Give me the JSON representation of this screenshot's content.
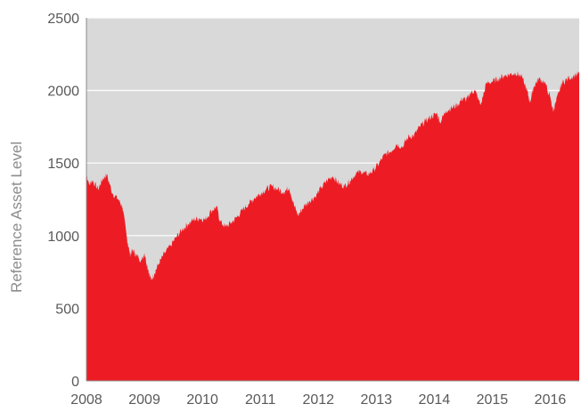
{
  "chart_data": {
    "type": "area",
    "title": "",
    "xlabel": "",
    "ylabel": "Reference Asset Level",
    "ylim": [
      0,
      2500
    ],
    "xlim": [
      2008.0,
      2016.5
    ],
    "grid": true,
    "yticks": [
      "0",
      "500",
      "1000",
      "1500",
      "2000",
      "2500"
    ],
    "xticks": [
      "2008",
      "2009",
      "2010",
      "2011",
      "2012",
      "2013",
      "2014",
      "2015",
      "2016"
    ],
    "colors": {
      "fill": "#ed1c24",
      "background": "#d9d9d9",
      "grid": "#ffffff"
    },
    "series": [
      {
        "x": [
          2008.0,
          2008.05,
          2008.1,
          2008.2,
          2008.28,
          2008.35,
          2008.45,
          2008.55,
          2008.62,
          2008.7,
          2008.75,
          2008.8,
          2008.87,
          2008.95,
          2009.0,
          2009.07,
          2009.12,
          2009.17,
          2009.25,
          2009.35,
          2009.45,
          2009.55,
          2009.65,
          2009.75,
          2009.85,
          2009.95,
          2010.05,
          2010.15,
          2010.25,
          2010.3,
          2010.4,
          2010.5,
          2010.6,
          2010.7,
          2010.8,
          2010.9,
          2011.0,
          2011.1,
          2011.2,
          2011.3,
          2011.4,
          2011.5,
          2011.58,
          2011.65,
          2011.75,
          2011.85,
          2011.95,
          2012.05,
          2012.15,
          2012.25,
          2012.35,
          2012.45,
          2012.55,
          2012.65,
          2012.75,
          2012.85,
          2012.95,
          2013.05,
          2013.15,
          2013.25,
          2013.35,
          2013.45,
          2013.55,
          2013.65,
          2013.75,
          2013.85,
          2013.95,
          2014.05,
          2014.1,
          2014.2,
          2014.3,
          2014.4,
          2014.5,
          2014.55,
          2014.62,
          2014.7,
          2014.8,
          2014.9,
          2015.0,
          2015.1,
          2015.2,
          2015.3,
          2015.4,
          2015.5,
          2015.6,
          2015.65,
          2015.72,
          2015.8,
          2015.9,
          2016.0,
          2016.05,
          2016.1,
          2016.2,
          2016.3,
          2016.4,
          2016.5
        ],
        "y": [
          1420,
          1350,
          1380,
          1320,
          1390,
          1420,
          1290,
          1250,
          1200,
          980,
          870,
          900,
          860,
          830,
          880,
          760,
          690,
          740,
          810,
          880,
          930,
          990,
          1040,
          1080,
          1110,
          1120,
          1110,
          1170,
          1200,
          1100,
          1060,
          1090,
          1130,
          1180,
          1220,
          1260,
          1290,
          1320,
          1340,
          1320,
          1300,
          1330,
          1210,
          1140,
          1200,
          1240,
          1270,
          1330,
          1380,
          1410,
          1360,
          1340,
          1380,
          1430,
          1440,
          1420,
          1450,
          1500,
          1560,
          1580,
          1630,
          1610,
          1680,
          1690,
          1750,
          1790,
          1820,
          1840,
          1780,
          1860,
          1880,
          1900,
          1950,
          1930,
          1980,
          2000,
          1900,
          2050,
          2060,
          2080,
          2100,
          2110,
          2120,
          2100,
          2000,
          1920,
          2030,
          2080,
          2060,
          1950,
          1860,
          1920,
          2050,
          2080,
          2100,
          2120
        ]
      }
    ]
  }
}
